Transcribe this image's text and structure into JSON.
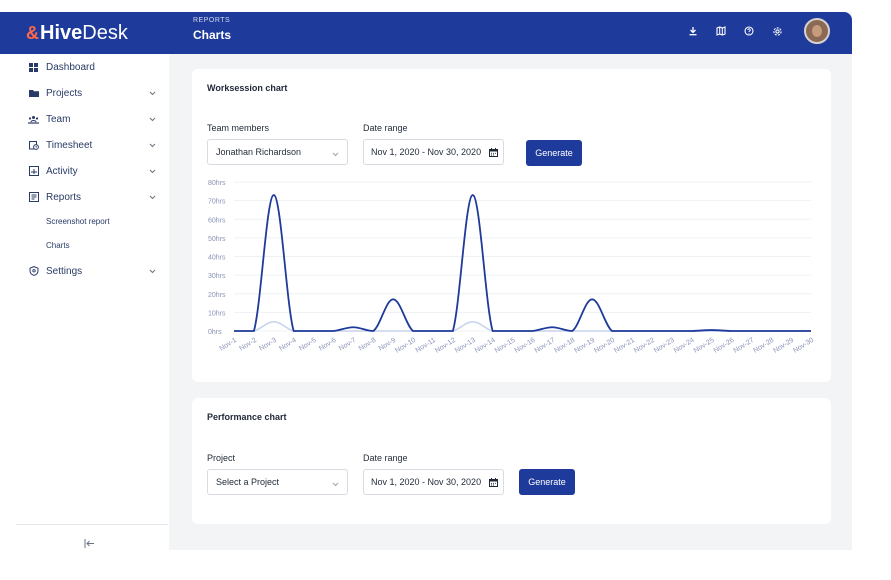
{
  "brand": {
    "mark": "&",
    "hive": "Hive",
    "desk": "Desk"
  },
  "header": {
    "section": "REPORTS",
    "title": "Charts"
  },
  "top_icons": [
    "download-icon",
    "map-icon",
    "help-icon",
    "gear-icon"
  ],
  "sidebar": {
    "items": [
      {
        "label": "Dashboard",
        "icon": "dashboard-icon",
        "has_chevron": false
      },
      {
        "label": "Projects",
        "icon": "folder-icon",
        "has_chevron": true
      },
      {
        "label": "Team",
        "icon": "team-icon",
        "has_chevron": true
      },
      {
        "label": "Timesheet",
        "icon": "timesheet-icon",
        "has_chevron": true
      },
      {
        "label": "Activity",
        "icon": "activity-icon",
        "has_chevron": true
      },
      {
        "label": "Reports",
        "icon": "reports-icon",
        "has_chevron": true
      },
      {
        "label": "Settings",
        "icon": "settings-icon",
        "has_chevron": true
      }
    ],
    "sub_items": [
      "Screenshot report",
      "Charts"
    ]
  },
  "worksession": {
    "title": "Worksession chart",
    "members_label": "Team members",
    "member_value": "Jonathan Richardson",
    "date_label": "Date range",
    "date_value": "Nov 1, 2020 - Nov 30, 2020",
    "button": "Generate"
  },
  "performance": {
    "title": "Performance chart",
    "project_label": "Project",
    "project_value": "Select a Project",
    "date_label": "Date range",
    "date_value": "Nov 1, 2020 - Nov 30, 2020",
    "button": "Generate"
  },
  "colors": {
    "primary": "#1e3a9a",
    "logo_accent": "#ff6a4a",
    "series_main": "#1e3a9a",
    "series_secondary": "#c7d2ec"
  },
  "chart_data": {
    "type": "line",
    "x": [
      "Nov-1",
      "Nov-2",
      "Nov-3",
      "Nov-4",
      "Nov-5",
      "Nov-6",
      "Nov-7",
      "Nov-8",
      "Nov-9",
      "Nov-10",
      "Nov-11",
      "Nov-12",
      "Nov-13",
      "Nov-14",
      "Nov-15",
      "Nov-16",
      "Nov-17",
      "Nov-18",
      "Nov-19",
      "Nov-20",
      "Nov-21",
      "Nov-22",
      "Nov-23",
      "Nov-24",
      "Nov-25",
      "Nov-26",
      "Nov-27",
      "Nov-28",
      "Nov-29",
      "Nov-30"
    ],
    "series": [
      {
        "values": [
          0,
          0,
          73,
          0,
          0,
          0,
          2,
          0,
          17,
          0,
          0,
          0,
          73,
          0,
          0,
          0,
          2,
          0,
          17,
          0,
          0,
          0,
          0,
          0,
          0.5,
          0,
          0,
          0,
          0,
          0
        ]
      },
      {
        "values": [
          0,
          0,
          5,
          0,
          0,
          0,
          0,
          0,
          0,
          0,
          0,
          0,
          5,
          0,
          0,
          0,
          0,
          0,
          0,
          0,
          0,
          0,
          0,
          0,
          0,
          0,
          0,
          0,
          0,
          0
        ]
      }
    ],
    "yticks": [
      "0hrs",
      "10hrs",
      "20hrs",
      "30hrs",
      "40hrs",
      "50hrs",
      "60hrs",
      "70hrs",
      "80hrs"
    ],
    "ylim": [
      0,
      80
    ],
    "grid": true
  }
}
